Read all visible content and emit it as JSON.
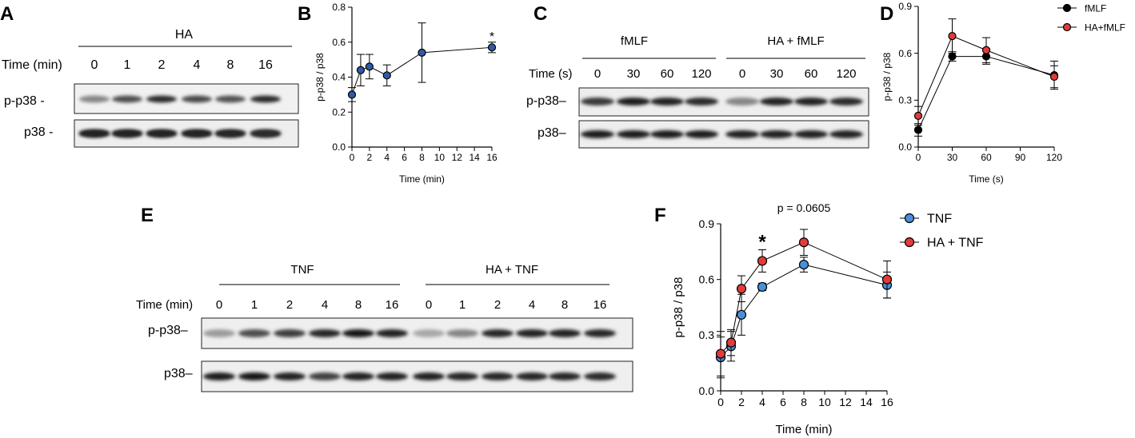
{
  "panels": {
    "A": {
      "letter": "A",
      "treatment": "HA",
      "time_label": "Time (min)",
      "times": [
        "0",
        "1",
        "2",
        "4",
        "8",
        "16"
      ],
      "row_labels": [
        "p-p38 -",
        "p38 -"
      ],
      "band_intensity": {
        "p-p38": [
          0.45,
          0.7,
          0.85,
          0.72,
          0.68,
          0.85
        ],
        "p38": [
          0.9,
          0.9,
          0.9,
          0.9,
          0.88,
          0.85
        ]
      }
    },
    "C": {
      "letter": "C",
      "groups": [
        "fMLF",
        "HA + fMLF"
      ],
      "time_label": "Time (s)",
      "times": [
        "0",
        "30",
        "60",
        "120",
        "0",
        "30",
        "60",
        "120"
      ],
      "row_labels": [
        "p-p38–",
        "p38–"
      ],
      "band_intensity": {
        "p-p38": [
          0.8,
          0.92,
          0.9,
          0.85,
          0.45,
          0.9,
          0.9,
          0.85
        ],
        "p38": [
          0.92,
          0.92,
          0.92,
          0.92,
          0.9,
          0.9,
          0.9,
          0.9
        ]
      }
    },
    "E": {
      "letter": "E",
      "groups": [
        "TNF",
        "HA + TNF"
      ],
      "time_label": "Time (min)",
      "times": [
        "0",
        "1",
        "2",
        "4",
        "8",
        "16",
        "0",
        "1",
        "2",
        "4",
        "8",
        "16"
      ],
      "row_labels": [
        "p-p38–",
        "p38–"
      ],
      "band_intensity": {
        "p-p38": [
          0.35,
          0.7,
          0.78,
          0.88,
          0.95,
          0.9,
          0.3,
          0.45,
          0.88,
          0.9,
          0.9,
          0.88
        ],
        "p38": [
          0.92,
          0.95,
          0.9,
          0.75,
          0.9,
          0.9,
          0.9,
          0.88,
          0.88,
          0.88,
          0.88,
          0.85
        ]
      }
    }
  },
  "chart_data": [
    {
      "panel": "B",
      "type": "line",
      "xlabel": "Time (min)",
      "ylabel": "p-p38 / p38",
      "xlim": [
        0,
        16
      ],
      "ylim": [
        0,
        0.8
      ],
      "xticks": [
        "0",
        "2",
        "4",
        "6",
        "8",
        "10",
        "12",
        "14",
        "16"
      ],
      "yticks": [
        "0.0",
        "0.2",
        "0.4",
        "0.6",
        "0.8"
      ],
      "x": [
        0,
        1,
        2,
        4,
        8,
        16
      ],
      "series": [
        {
          "color": "#2f5aa6",
          "values": [
            0.3,
            0.44,
            0.46,
            0.41,
            0.54,
            0.57
          ],
          "errors": [
            0.04,
            0.09,
            0.07,
            0.06,
            0.17,
            0.03
          ]
        }
      ],
      "annotations": [
        {
          "x": 16,
          "text": "*"
        }
      ]
    },
    {
      "panel": "D",
      "type": "line",
      "xlabel": "Time (s)",
      "ylabel": "p-p38 / p38",
      "xlim": [
        0,
        120
      ],
      "ylim": [
        0,
        0.9
      ],
      "xticks": [
        "0",
        "30",
        "60",
        "90",
        "120"
      ],
      "yticks": [
        "0.0",
        "0.3",
        "0.6",
        "0.9"
      ],
      "x": [
        0,
        30,
        60,
        120
      ],
      "legend_position": "top-right",
      "series": [
        {
          "name": "fMLF",
          "color": "#000000",
          "values": [
            0.11,
            0.58,
            0.58,
            0.46
          ],
          "errors": [
            0.04,
            0.03,
            0.05,
            0.09
          ]
        },
        {
          "name": "HA+fMLF",
          "color": "#e23b3b",
          "values": [
            0.2,
            0.71,
            0.62,
            0.45
          ],
          "errors": [
            0.06,
            0.11,
            0.08,
            0.07
          ]
        }
      ]
    },
    {
      "panel": "F",
      "type": "line",
      "xlabel": "Time (min)",
      "ylabel": "p-p38 / p38",
      "xlim": [
        0,
        16
      ],
      "ylim": [
        0,
        0.9
      ],
      "xticks": [
        "0",
        "2",
        "4",
        "6",
        "8",
        "10",
        "12",
        "14",
        "16"
      ],
      "yticks": [
        "0.0",
        "0.3",
        "0.6",
        "0.9"
      ],
      "x": [
        0,
        1,
        2,
        4,
        8,
        16
      ],
      "legend_position": "top-right",
      "series": [
        {
          "name": "TNF",
          "color": "#4a90d9",
          "values": [
            0.18,
            0.24,
            0.41,
            0.56,
            0.68,
            0.57
          ],
          "errors": [
            0.11,
            0.08,
            0.11,
            0.02,
            0.04,
            0.07
          ]
        },
        {
          "name": "HA + TNF",
          "color": "#e23b3b",
          "values": [
            0.2,
            0.26,
            0.55,
            0.7,
            0.8,
            0.6
          ],
          "errors": [
            0.12,
            0.07,
            0.07,
            0.06,
            0.07,
            0.1
          ]
        }
      ],
      "annotations": [
        {
          "x": 4,
          "text": "*"
        },
        {
          "x": 8,
          "text": "p = 0.0605"
        }
      ]
    }
  ]
}
